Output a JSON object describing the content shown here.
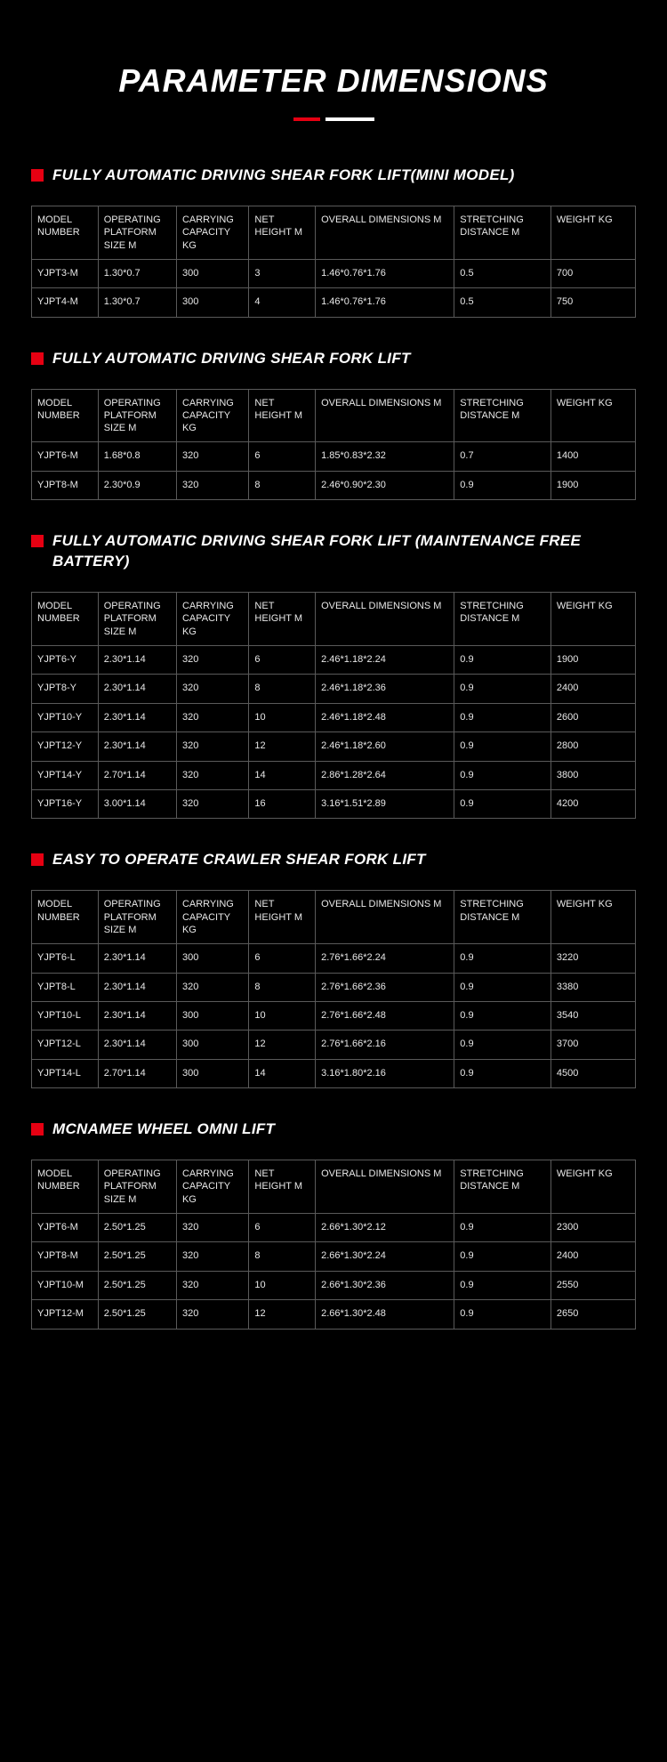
{
  "title": "PARAMETER DIMENSIONS",
  "columns": [
    "MODEL NUMBER",
    "OPERATING PLATFORM SIZE M",
    "CARRYING CAPACITY KG",
    "NET HEIGHT M",
    "OVERALL DIMENSIONS M",
    "STRETCHING DISTANCE M",
    "WEIGHT KG"
  ],
  "sections": [
    {
      "heading": "FULLY AUTOMATIC DRIVING SHEAR FORK LIFT(MINI MODEL)",
      "rows": [
        [
          "YJPT3-M",
          "1.30*0.7",
          "300",
          "3",
          "1.46*0.76*1.76",
          "0.5",
          "700"
        ],
        [
          "YJPT4-M",
          "1.30*0.7",
          "300",
          "4",
          "1.46*0.76*1.76",
          "0.5",
          "750"
        ]
      ]
    },
    {
      "heading": "FULLY AUTOMATIC DRIVING SHEAR FORK LIFT",
      "rows": [
        [
          "YJPT6-M",
          "1.68*0.8",
          "320",
          "6",
          "1.85*0.83*2.32",
          "0.7",
          "1400"
        ],
        [
          "YJPT8-M",
          "2.30*0.9",
          "320",
          "8",
          "2.46*0.90*2.30",
          "0.9",
          "1900"
        ]
      ]
    },
    {
      "heading": "FULLY AUTOMATIC DRIVING SHEAR FORK LIFT (MAINTENANCE FREE BATTERY)",
      "rows": [
        [
          "YJPT6-Y",
          "2.30*1.14",
          "320",
          "6",
          "2.46*1.18*2.24",
          "0.9",
          "1900"
        ],
        [
          "YJPT8-Y",
          "2.30*1.14",
          "320",
          "8",
          "2.46*1.18*2.36",
          "0.9",
          "2400"
        ],
        [
          "YJPT10-Y",
          "2.30*1.14",
          "320",
          "10",
          "2.46*1.18*2.48",
          "0.9",
          "2600"
        ],
        [
          "YJPT12-Y",
          "2.30*1.14",
          "320",
          "12",
          "2.46*1.18*2.60",
          "0.9",
          "2800"
        ],
        [
          "YJPT14-Y",
          "2.70*1.14",
          "320",
          "14",
          "2.86*1.28*2.64",
          "0.9",
          "3800"
        ],
        [
          "YJPT16-Y",
          "3.00*1.14",
          "320",
          "16",
          "3.16*1.51*2.89",
          "0.9",
          "4200"
        ]
      ]
    },
    {
      "heading": "EASY TO OPERATE CRAWLER SHEAR FORK LIFT",
      "rows": [
        [
          "YJPT6-L",
          "2.30*1.14",
          "300",
          "6",
          "2.76*1.66*2.24",
          "0.9",
          "3220"
        ],
        [
          "YJPT8-L",
          "2.30*1.14",
          "320",
          "8",
          "2.76*1.66*2.36",
          "0.9",
          "3380"
        ],
        [
          "YJPT10-L",
          "2.30*1.14",
          "300",
          "10",
          "2.76*1.66*2.48",
          "0.9",
          "3540"
        ],
        [
          "YJPT12-L",
          "2.30*1.14",
          "300",
          "12",
          "2.76*1.66*2.16",
          "0.9",
          "3700"
        ],
        [
          "YJPT14-L",
          "2.70*1.14",
          "300",
          "14",
          "3.16*1.80*2.16",
          "0.9",
          "4500"
        ]
      ]
    },
    {
      "heading": "MCNAMEE WHEEL OMNI LIFT",
      "rows": [
        [
          "YJPT6-M",
          "2.50*1.25",
          "320",
          "6",
          "2.66*1.30*2.12",
          "0.9",
          "2300"
        ],
        [
          "YJPT8-M",
          "2.50*1.25",
          "320",
          "8",
          "2.66*1.30*2.24",
          "0.9",
          "2400"
        ],
        [
          "YJPT10-M",
          "2.50*1.25",
          "320",
          "10",
          "2.66*1.30*2.36",
          "0.9",
          "2550"
        ],
        [
          "YJPT12-M",
          "2.50*1.25",
          "320",
          "12",
          "2.66*1.30*2.48",
          "0.9",
          "2650"
        ]
      ]
    }
  ],
  "style": {
    "background_color": "#000000",
    "text_color": "#ffffff",
    "accent_color": "#e60012",
    "border_color": "#5a5a5a",
    "title_fontsize": 36,
    "heading_fontsize": 17,
    "cell_fontsize": 11,
    "col_widths_pct": [
      11,
      13,
      12,
      11,
      23,
      16,
      14
    ]
  }
}
